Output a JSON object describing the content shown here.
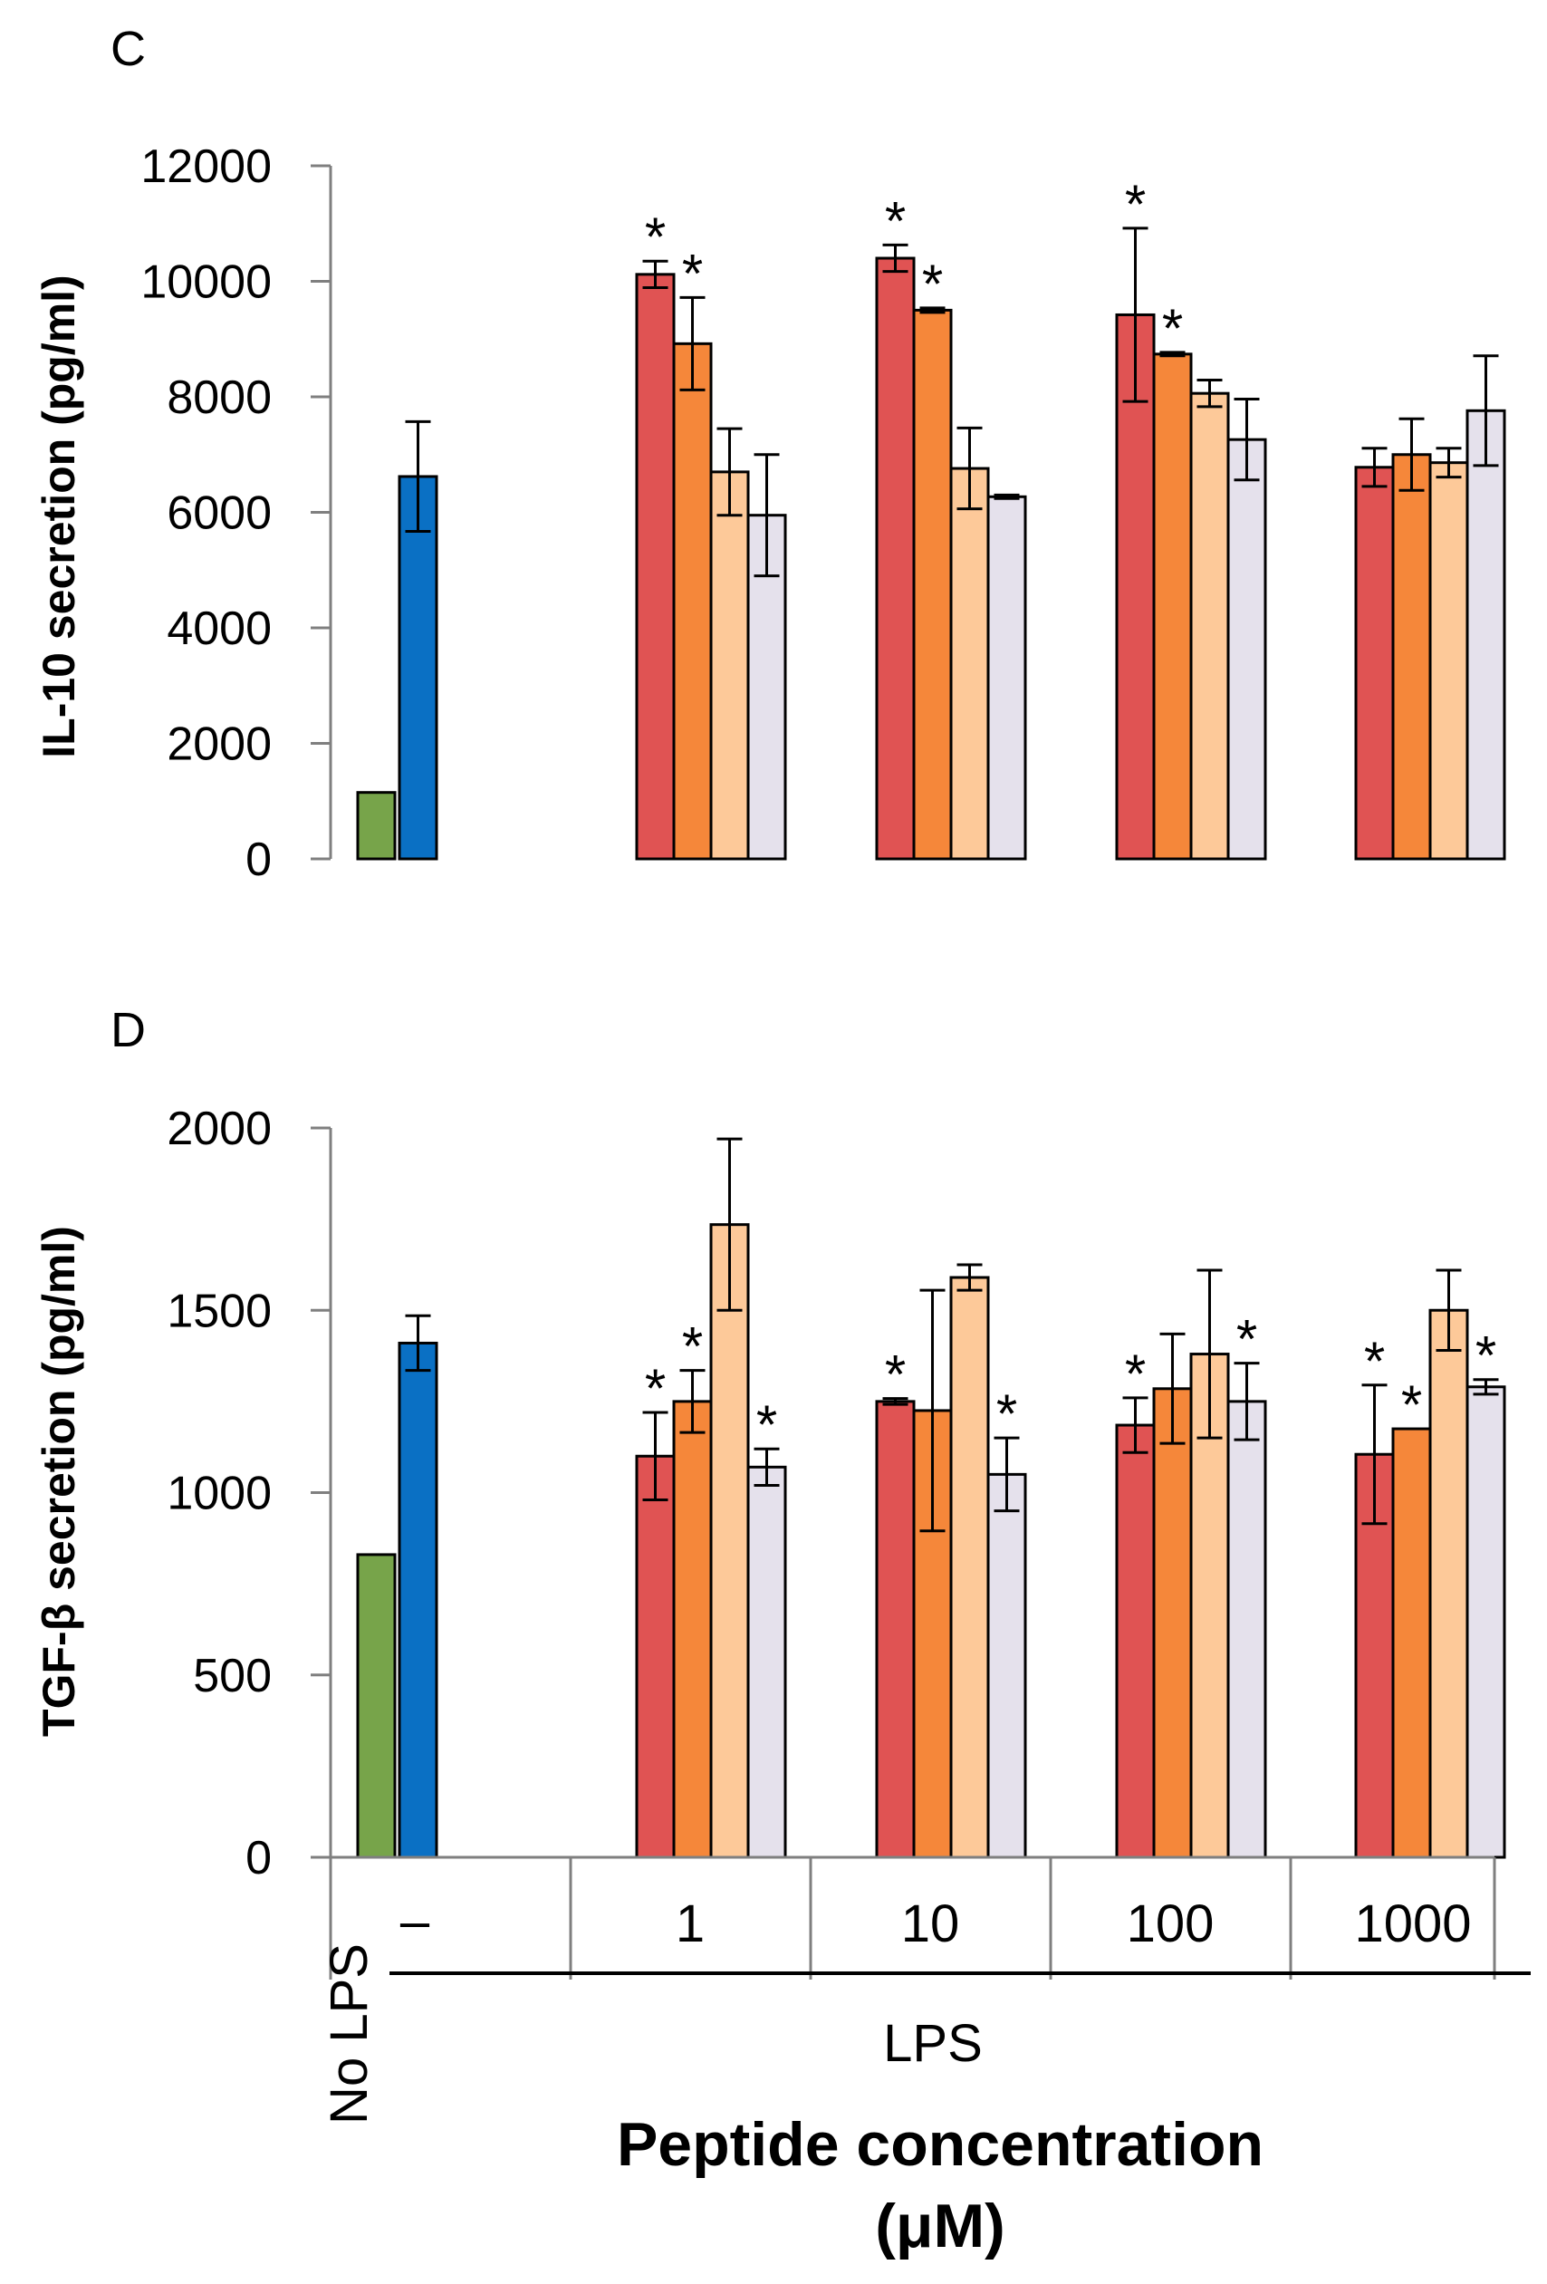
{
  "colors": {
    "no_lps": "#77A44A",
    "lps_only": "#0A70C4",
    "peptide_series": [
      "#E05353",
      "#F5873A",
      "#FDC999",
      "#E5E1EC"
    ],
    "axis": "#7f7f7f",
    "bar_border": "#000000"
  },
  "x_axis": {
    "no_lps_label": "No LPS",
    "dash_label": "–",
    "concentrations": [
      "1",
      "10",
      "100",
      "1000"
    ],
    "lps_label": "LPS",
    "title_line1": "Peptide concentration",
    "title_line2": "(μM)"
  },
  "chart_data": [
    {
      "type": "bar",
      "panel_label": "C",
      "ylabel": "IL-10 secretion (pg/ml)",
      "ylim": [
        0,
        12000
      ],
      "yticks": [
        0,
        2000,
        4000,
        6000,
        8000,
        10000,
        12000
      ],
      "controls": [
        {
          "name": "No LPS",
          "value": 1150,
          "error": 0
        },
        {
          "name": "LPS",
          "value": 6620,
          "error": 950
        }
      ],
      "categories": [
        "1",
        "10",
        "100",
        "1000"
      ],
      "series_values": [
        {
          "values": [
            10120,
            10400,
            9420,
            6780
          ],
          "errors": [
            230,
            230,
            1500,
            330
          ],
          "stars": [
            true,
            true,
            true,
            false
          ]
        },
        {
          "values": [
            8920,
            9500,
            8740,
            7000
          ],
          "errors": [
            800,
            40,
            30,
            620
          ],
          "stars": [
            true,
            true,
            true,
            false
          ]
        },
        {
          "values": [
            6700,
            6760,
            8060,
            6860
          ],
          "errors": [
            750,
            700,
            230,
            250
          ],
          "stars": [
            false,
            false,
            false,
            false
          ]
        },
        {
          "values": [
            5950,
            6270,
            7260,
            7760
          ],
          "errors": [
            1050,
            30,
            700,
            950
          ],
          "stars": [
            false,
            false,
            false,
            false
          ]
        }
      ],
      "star_symbol": "*"
    },
    {
      "type": "bar",
      "panel_label": "D",
      "ylabel": "TGF-β secretion (pg/ml)",
      "ylim": [
        0,
        2000
      ],
      "yticks": [
        0,
        500,
        1000,
        1500,
        2000
      ],
      "controls": [
        {
          "name": "No LPS",
          "value": 830,
          "error": 0
        },
        {
          "name": "LPS",
          "value": 1410,
          "error": 75
        }
      ],
      "categories": [
        "1",
        "10",
        "100",
        "1000"
      ],
      "series_values": [
        {
          "values": [
            1100,
            1250,
            1185,
            1105
          ],
          "errors": [
            120,
            8,
            75,
            190
          ],
          "stars": [
            true,
            true,
            true,
            true
          ]
        },
        {
          "values": [
            1250,
            1225,
            1285,
            1175
          ],
          "errors": [
            85,
            330,
            150,
            0
          ],
          "stars": [
            true,
            false,
            false,
            true
          ]
        },
        {
          "values": [
            1735,
            1590,
            1380,
            1500
          ],
          "errors": [
            235,
            35,
            230,
            110
          ],
          "stars": [
            false,
            false,
            false,
            false
          ]
        },
        {
          "values": [
            1070,
            1050,
            1250,
            1290
          ],
          "errors": [
            50,
            100,
            105,
            20
          ],
          "stars": [
            true,
            true,
            true,
            true
          ]
        }
      ],
      "star_symbol": "*"
    }
  ]
}
